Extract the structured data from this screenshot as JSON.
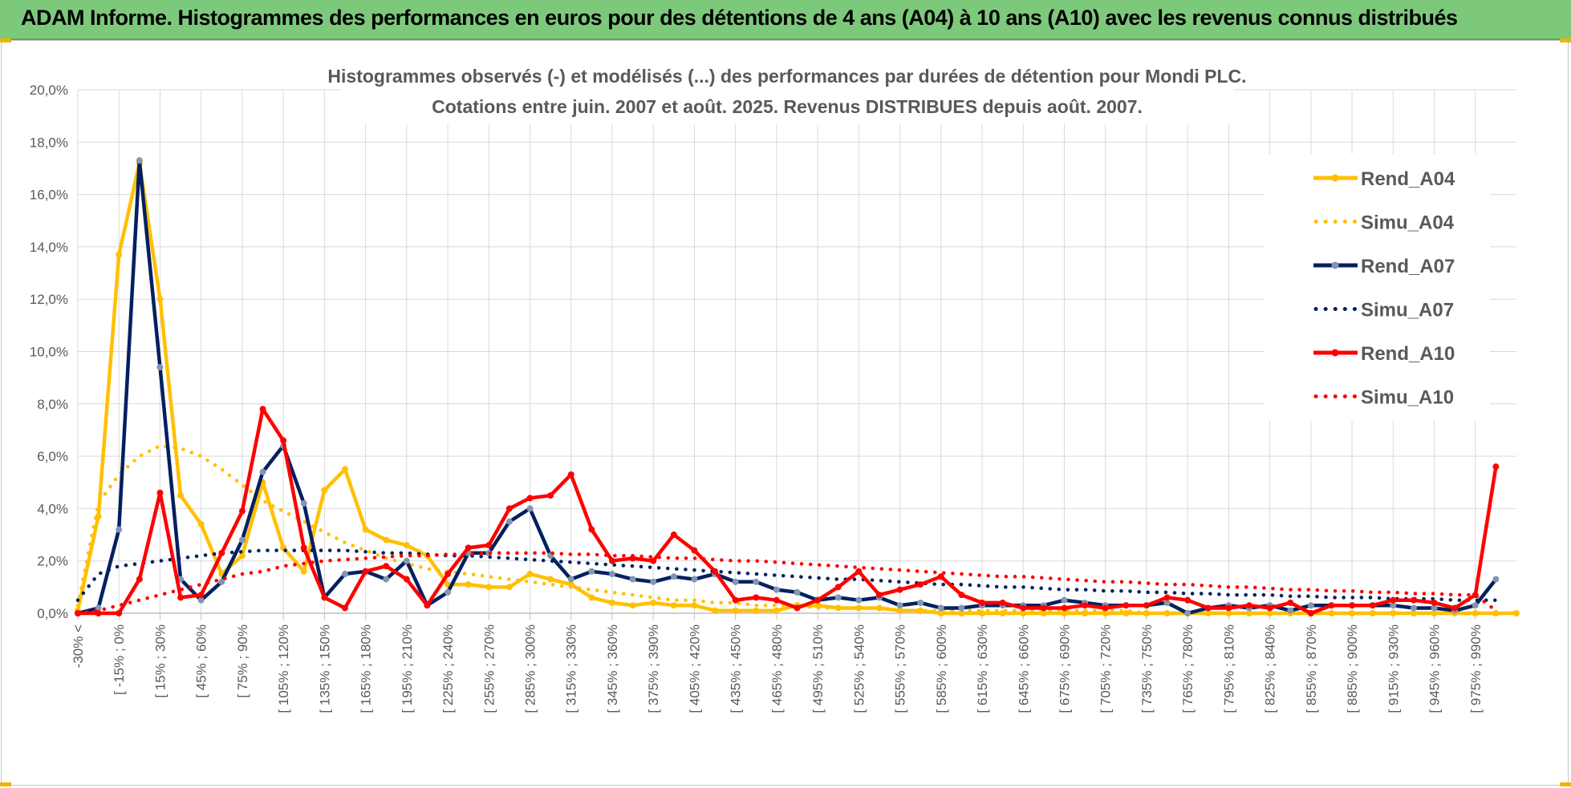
{
  "header": {
    "title": "ADAM Informe. Histogrammes des performances en euros pour des détentions de 4 ans (A04) à 10 ans (A10) avec les revenus connus distribués"
  },
  "chart_data": {
    "type": "line",
    "title": "Histogrammes observés (-) et modélisés (...) des performances par durées de détention pour Mondi PLC.",
    "subtitle": "Cotations entre juin. 2007 et août. 2025. Revenus DISTRIBUES depuis août. 2007.",
    "xlabel": "",
    "ylabel": "",
    "ylim": [
      0,
      20
    ],
    "y_ticks": [
      "0,0%",
      "2,0%",
      "4,0%",
      "6,0%",
      "8,0%",
      "10,0%",
      "12,0%",
      "14,0%",
      "16,0%",
      "18,0%",
      "20,0%"
    ],
    "grid": true,
    "legend_position": "right",
    "x_tick_labels": [
      "-30% <",
      "[ -15% ; 0%",
      "[ 15% ; 30%",
      "[ 45% ; 60%",
      "[ 75% ; 90%",
      "[ 105% ; 120%",
      "[ 135% ; 150%",
      "[ 165% ; 180%",
      "[ 195% ; 210%",
      "[ 225% ; 240%",
      "[ 255% ; 270%",
      "[ 285% ; 300%",
      "[ 315% ; 330%",
      "[ 345% ; 360%",
      "[ 375% ; 390%",
      "[ 405% ; 420%",
      "[ 435% ; 450%",
      "[ 465% ; 480%",
      "[ 495% ; 510%",
      "[ 525% ; 540%",
      "[ 555% ; 570%",
      "[ 585% ; 600%",
      "[ 615% ; 630%",
      "[ 645% ; 660%",
      "[ 675% ; 690%",
      "[ 705% ; 720%",
      "[ 735% ; 750%",
      "[ 765% ; 780%",
      "[ 795% ; 810%",
      "[ 825% ; 840%",
      "[ 855% ; 870%",
      "[ 885% ; 900%",
      "[ 915% ; 930%",
      "[ 945% ; 960%",
      "[ 975% ; 990%"
    ],
    "series": [
      {
        "name": "Rend_A04",
        "color": "#ffc000",
        "style": "solid",
        "values": [
          0.1,
          3.7,
          13.7,
          17.2,
          12.0,
          4.5,
          3.4,
          1.5,
          2.2,
          5.0,
          2.5,
          1.6,
          4.7,
          5.5,
          3.2,
          2.8,
          2.6,
          2.2,
          1.1,
          1.1,
          1.0,
          1.0,
          1.5,
          1.3,
          1.1,
          0.6,
          0.4,
          0.3,
          0.4,
          0.3,
          0.3,
          0.1,
          0.1,
          0.1,
          0.1,
          0.3,
          0.3,
          0.2,
          0.2,
          0.2,
          0.1,
          0.1,
          0.0,
          0.0,
          0.0,
          0.0,
          0.0,
          0.0,
          0.0,
          0.0,
          0.0,
          0.0,
          0.0,
          0.0,
          0.0,
          0.0,
          0.0,
          0.0,
          0.0,
          0.0,
          0.0,
          0.0,
          0.0,
          0.0,
          0.0,
          0.0,
          0.0,
          0.0,
          0.0,
          0.0,
          0.0
        ]
      },
      {
        "name": "Simu_A04",
        "color": "#ffc000",
        "style": "dotted",
        "values": [
          0.3,
          4.2,
          5.3,
          6.0,
          6.4,
          6.3,
          6.0,
          5.5,
          4.9,
          4.3,
          3.9,
          3.5,
          3.1,
          2.7,
          2.4,
          2.1,
          1.9,
          1.7,
          1.6,
          1.5,
          1.4,
          1.3,
          1.2,
          1.1,
          1.0,
          0.9,
          0.8,
          0.7,
          0.6,
          0.5,
          0.5,
          0.4,
          0.4,
          0.3,
          0.3,
          0.3,
          0.2,
          0.2,
          0.2,
          0.2,
          0.1,
          0.1,
          0.1,
          0.1,
          0.1,
          0.1,
          0.1,
          0.1,
          0.1,
          0.1,
          0.1,
          0.1,
          0.0,
          0.0,
          0.0,
          0.0,
          0.0,
          0.0,
          0.0,
          0.0,
          0.0,
          0.0,
          0.0,
          0.0,
          0.0,
          0.0,
          0.0,
          0.0,
          0.0,
          0.0,
          0.0
        ]
      },
      {
        "name": "Rend_A07",
        "color": "#002060",
        "style": "solid",
        "values": [
          0.0,
          0.2,
          3.2,
          17.3,
          9.4,
          1.3,
          0.5,
          1.2,
          2.8,
          5.4,
          6.4,
          4.2,
          0.6,
          1.5,
          1.6,
          1.3,
          2.0,
          0.3,
          0.8,
          2.3,
          2.3,
          3.5,
          4.0,
          2.2,
          1.3,
          1.6,
          1.5,
          1.3,
          1.2,
          1.4,
          1.3,
          1.5,
          1.2,
          1.2,
          0.9,
          0.8,
          0.5,
          0.6,
          0.5,
          0.6,
          0.3,
          0.4,
          0.2,
          0.2,
          0.3,
          0.3,
          0.3,
          0.3,
          0.5,
          0.4,
          0.3,
          0.3,
          0.3,
          0.4,
          0.0,
          0.2,
          0.3,
          0.2,
          0.3,
          0.1,
          0.3,
          0.3,
          0.3,
          0.3,
          0.3,
          0.2,
          0.2,
          0.1,
          0.3,
          1.3
        ]
      },
      {
        "name": "Simu_A07",
        "color": "#002060",
        "style": "dotted",
        "values": [
          0.5,
          1.5,
          1.8,
          1.9,
          2.0,
          2.1,
          2.2,
          2.3,
          2.35,
          2.4,
          2.4,
          2.4,
          2.4,
          2.4,
          2.35,
          2.3,
          2.3,
          2.25,
          2.2,
          2.2,
          2.15,
          2.1,
          2.05,
          2.0,
          1.95,
          1.9,
          1.85,
          1.8,
          1.75,
          1.7,
          1.65,
          1.6,
          1.55,
          1.5,
          1.45,
          1.4,
          1.35,
          1.3,
          1.3,
          1.25,
          1.2,
          1.15,
          1.1,
          1.1,
          1.05,
          1.0,
          1.0,
          0.95,
          0.9,
          0.9,
          0.85,
          0.85,
          0.8,
          0.8,
          0.75,
          0.75,
          0.7,
          0.7,
          0.7,
          0.65,
          0.65,
          0.6,
          0.6,
          0.6,
          0.55,
          0.55,
          0.55,
          0.5,
          0.5,
          0.5
        ]
      },
      {
        "name": "Rend_A10",
        "color": "#ff0000",
        "style": "solid",
        "values": [
          0.0,
          0.0,
          0.0,
          1.3,
          4.6,
          0.6,
          0.7,
          2.3,
          3.9,
          7.8,
          6.6,
          2.5,
          0.6,
          0.2,
          1.6,
          1.8,
          1.3,
          0.3,
          1.5,
          2.5,
          2.6,
          4.0,
          4.4,
          4.5,
          5.3,
          3.2,
          2.0,
          2.1,
          2.0,
          3.0,
          2.4,
          1.6,
          0.5,
          0.6,
          0.5,
          0.2,
          0.5,
          1.0,
          1.6,
          0.7,
          0.9,
          1.1,
          1.4,
          0.7,
          0.4,
          0.4,
          0.2,
          0.2,
          0.2,
          0.3,
          0.2,
          0.3,
          0.3,
          0.6,
          0.5,
          0.2,
          0.2,
          0.3,
          0.2,
          0.4,
          0.0,
          0.3,
          0.3,
          0.3,
          0.5,
          0.5,
          0.4,
          0.2,
          0.7,
          5.6
        ]
      },
      {
        "name": "Simu_A10",
        "color": "#ff0000",
        "style": "dotted",
        "values": [
          0.0,
          0.1,
          0.3,
          0.5,
          0.7,
          0.9,
          1.1,
          1.3,
          1.5,
          1.6,
          1.8,
          1.9,
          2.0,
          2.05,
          2.1,
          2.15,
          2.2,
          2.2,
          2.25,
          2.25,
          2.3,
          2.3,
          2.3,
          2.3,
          2.25,
          2.25,
          2.2,
          2.2,
          2.15,
          2.1,
          2.1,
          2.05,
          2.0,
          2.0,
          1.95,
          1.9,
          1.85,
          1.8,
          1.75,
          1.7,
          1.65,
          1.6,
          1.55,
          1.5,
          1.45,
          1.4,
          1.4,
          1.35,
          1.3,
          1.25,
          1.2,
          1.2,
          1.15,
          1.1,
          1.1,
          1.05,
          1.0,
          1.0,
          0.95,
          0.9,
          0.9,
          0.85,
          0.85,
          0.8,
          0.8,
          0.75,
          0.75,
          0.7,
          0.7,
          0.1
        ]
      }
    ]
  }
}
